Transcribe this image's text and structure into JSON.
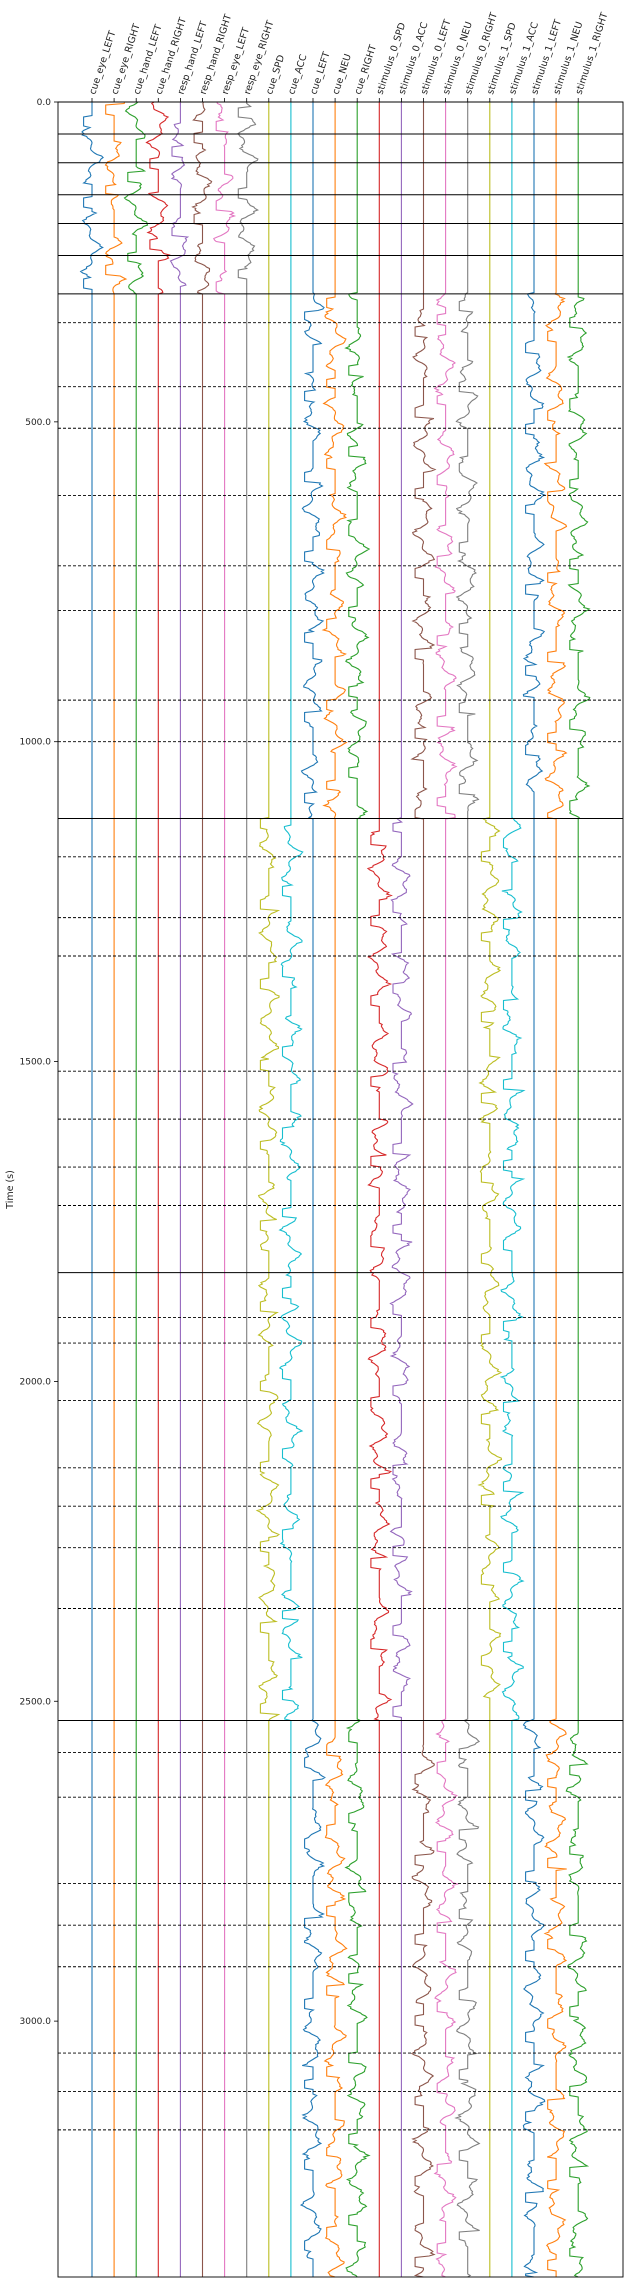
{
  "chart_data": {
    "type": "line",
    "ylabel": "Time (s)",
    "ylim": [
      0,
      3400
    ],
    "y_inverted": true,
    "y_ticks": [
      0.0,
      500.0,
      1000.0,
      1500.0,
      2000.0,
      2500.0,
      3000.0
    ],
    "y_tick_labels": [
      "0.0",
      "500.0",
      "1000.0",
      "1500.0",
      "2000.0",
      "2500.0",
      "3000.0"
    ],
    "grid": false,
    "channels": [
      {
        "name": "cue_eye_LEFT",
        "color": "#1f77b4"
      },
      {
        "name": "cue_eye_RIGHT",
        "color": "#ff7f0e"
      },
      {
        "name": "cue_hand_LEFT",
        "color": "#2ca02c"
      },
      {
        "name": "cue_hand_RIGHT",
        "color": "#d62728"
      },
      {
        "name": "resp_hand_LEFT",
        "color": "#9467bd"
      },
      {
        "name": "resp_hand_RIGHT",
        "color": "#8c564b"
      },
      {
        "name": "resp_eye_LEFT",
        "color": "#e377c2"
      },
      {
        "name": "resp_eye_RIGHT",
        "color": "#7f7f7f"
      },
      {
        "name": "cue_SPD",
        "color": "#bcbd22"
      },
      {
        "name": "cue_ACC",
        "color": "#17becf"
      },
      {
        "name": "cue_LEFT",
        "color": "#1f77b4"
      },
      {
        "name": "cue_NEU",
        "color": "#ff7f0e"
      },
      {
        "name": "cue_RIGHT",
        "color": "#2ca02c"
      },
      {
        "name": "stimulus_0_SPD",
        "color": "#d62728"
      },
      {
        "name": "stimulus_0_ACC",
        "color": "#9467bd"
      },
      {
        "name": "stimulus_0_LEFT",
        "color": "#8c564b"
      },
      {
        "name": "stimulus_0_NEU",
        "color": "#e377c2"
      },
      {
        "name": "stimulus_0_RIGHT",
        "color": "#7f7f7f"
      },
      {
        "name": "stimulus_1_SPD",
        "color": "#bcbd22"
      },
      {
        "name": "stimulus_1_ACC",
        "color": "#17becf"
      },
      {
        "name": "stimulus_1_LEFT",
        "color": "#1f77b4"
      },
      {
        "name": "stimulus_1_NEU",
        "color": "#ff7f0e"
      },
      {
        "name": "stimulus_1_RIGHT",
        "color": "#2ca02c"
      }
    ],
    "segments": [
      {
        "start": 0,
        "end": 300,
        "active": [
          0,
          1,
          2,
          3,
          4,
          5,
          6,
          7
        ]
      },
      {
        "start": 300,
        "end": 1120,
        "active": [
          10,
          11,
          12,
          15,
          16,
          17,
          20,
          21,
          22
        ]
      },
      {
        "start": 1120,
        "end": 2530,
        "active": [
          8,
          9,
          13,
          14,
          18,
          19
        ]
      },
      {
        "start": 2530,
        "end": 3400,
        "active": [
          10,
          11,
          12,
          15,
          16,
          17,
          20,
          21,
          22
        ]
      }
    ],
    "run_boundaries": [
      0,
      50,
      95,
      145,
      190,
      240,
      300,
      1120,
      1830,
      2530
    ],
    "trial_boundaries": [
      345,
      445,
      510,
      615,
      725,
      795,
      935,
      1000,
      1180,
      1275,
      1335,
      1515,
      1590,
      1665,
      1725,
      1900,
      1940,
      2030,
      2135,
      2195,
      2260,
      2355,
      2580,
      2650,
      2785,
      2850,
      2915,
      3050,
      3110,
      3170
    ]
  }
}
